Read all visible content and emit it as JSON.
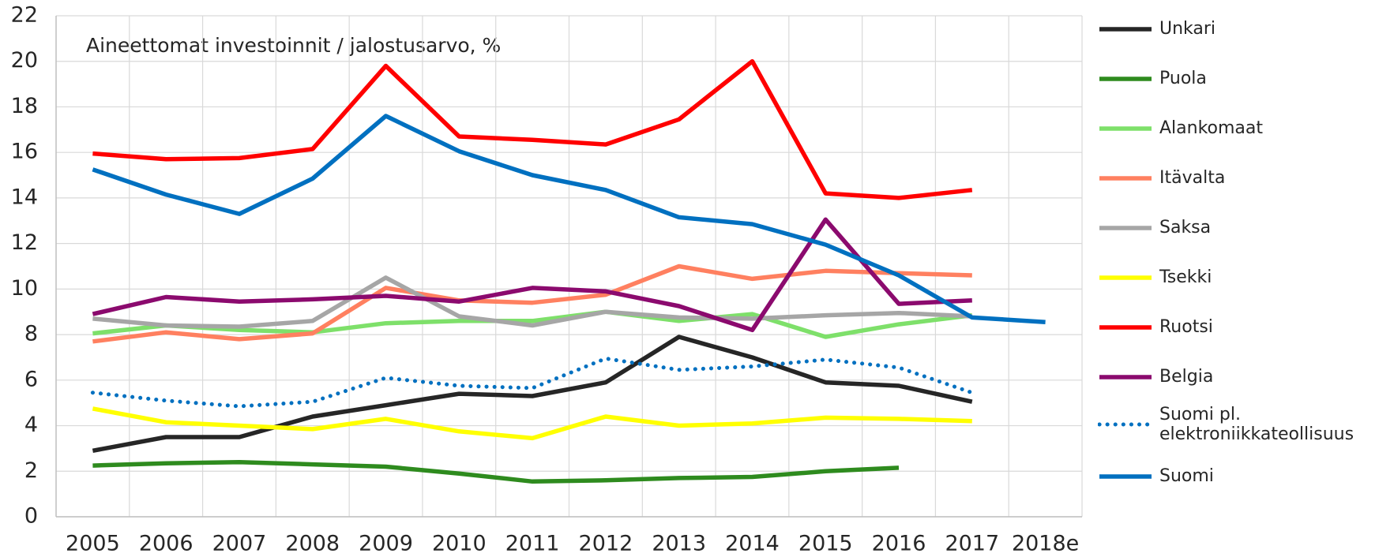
{
  "chart_data": {
    "type": "line",
    "title": "Aineettomat investoinnit / jalostusarvo, %",
    "categories": [
      "2005",
      "2006",
      "2007",
      "2008",
      "2009",
      "2010",
      "2011",
      "2012",
      "2013",
      "2014",
      "2015",
      "2016",
      "2017",
      "2018e"
    ],
    "ylim": [
      0,
      22
    ],
    "yticks": [
      0,
      2,
      4,
      6,
      8,
      10,
      12,
      14,
      16,
      18,
      20,
      22
    ],
    "grid": true,
    "legend": "right",
    "series": [
      {
        "name": "Unkari",
        "color": "#262626",
        "style": "solid",
        "values": [
          2.9,
          3.5,
          3.5,
          4.4,
          4.9,
          5.4,
          5.3,
          5.9,
          7.9,
          7.0,
          5.9,
          5.75,
          5.05,
          null
        ]
      },
      {
        "name": "Puola",
        "color": "#2e8b1e",
        "style": "solid",
        "values": [
          2.25,
          2.35,
          2.4,
          2.3,
          2.2,
          1.9,
          1.55,
          1.6,
          1.7,
          1.75,
          2.0,
          2.15,
          null,
          null
        ]
      },
      {
        "name": "Alankomaat",
        "color": "#7ee06a",
        "style": "solid",
        "values": [
          8.05,
          8.4,
          8.2,
          8.1,
          8.5,
          8.6,
          8.6,
          9.0,
          8.6,
          8.9,
          7.9,
          8.45,
          8.85,
          null
        ]
      },
      {
        "name": "Itävalta",
        "color": "#ff8060",
        "style": "solid",
        "values": [
          7.7,
          8.1,
          7.8,
          8.05,
          10.05,
          9.5,
          9.4,
          9.75,
          11.0,
          10.45,
          10.8,
          10.7,
          10.6,
          null
        ]
      },
      {
        "name": "Saksa",
        "color": "#a6a6a6",
        "style": "solid",
        "values": [
          8.7,
          8.4,
          8.35,
          8.6,
          10.5,
          8.8,
          8.4,
          9.0,
          8.75,
          8.7,
          8.85,
          8.95,
          8.8,
          null
        ]
      },
      {
        "name": "Tsekki",
        "color": "#ffff00",
        "style": "solid",
        "values": [
          4.75,
          4.15,
          4.0,
          3.85,
          4.3,
          3.75,
          3.45,
          4.4,
          4.0,
          4.1,
          4.35,
          4.3,
          4.2,
          null
        ]
      },
      {
        "name": "Ruotsi",
        "color": "#ff0000",
        "style": "solid",
        "values": [
          15.95,
          15.7,
          15.75,
          16.15,
          19.8,
          16.7,
          16.55,
          16.35,
          17.45,
          20.0,
          14.2,
          14.0,
          14.35,
          null
        ]
      },
      {
        "name": "Belgia",
        "color": "#8b0a6e",
        "style": "solid",
        "values": [
          8.9,
          9.65,
          9.45,
          9.55,
          9.7,
          9.45,
          10.05,
          9.9,
          9.25,
          8.2,
          13.05,
          9.35,
          9.5,
          null
        ]
      },
      {
        "name": "Suomi pl. elektroniikkateollisuus",
        "color": "#0070c0",
        "style": "dotted",
        "values": [
          5.45,
          5.1,
          4.85,
          5.05,
          6.1,
          5.75,
          5.65,
          6.95,
          6.45,
          6.6,
          6.9,
          6.55,
          5.45,
          null
        ]
      },
      {
        "name": "Suomi",
        "color": "#0070c0",
        "style": "solid",
        "values": [
          15.25,
          14.15,
          13.3,
          14.85,
          17.6,
          16.05,
          15.0,
          14.35,
          13.15,
          12.85,
          11.95,
          10.6,
          8.75,
          8.55
        ]
      }
    ]
  }
}
